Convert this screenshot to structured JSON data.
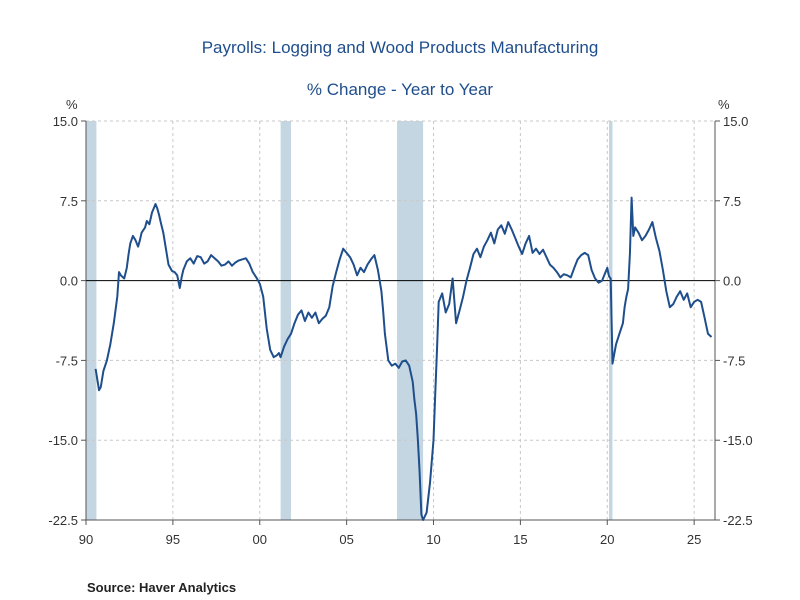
{
  "chart_data": {
    "type": "line",
    "title": "Payrolls: Logging and Wood Products Manufacturing",
    "subtitle": "% Change - Year to Year",
    "ylabel_left": "%",
    "ylabel_right": "%",
    "ylim": [
      -22.5,
      15.0
    ],
    "yticks": [
      15.0,
      7.5,
      0.0,
      -7.5,
      -15.0,
      -22.5
    ],
    "ytick_labels": [
      "15.0",
      "7.5",
      "0.0",
      "-7.5",
      "-15.0",
      "-22.5"
    ],
    "xlim": [
      1990,
      2026.2
    ],
    "xticks": [
      1990,
      1995,
      2000,
      2005,
      2010,
      2015,
      2020,
      2025
    ],
    "xtick_labels": [
      "90",
      "95",
      "00",
      "05",
      "10",
      "15",
      "20",
      "25"
    ],
    "grid": true,
    "recessions": [
      [
        1990.0,
        1990.6
      ],
      [
        2001.2,
        2001.8
      ],
      [
        2007.9,
        2009.4
      ],
      [
        2020.1,
        2020.3
      ]
    ],
    "series": [
      {
        "name": "Logging and Wood Products Manufacturing, % Change Y/Y",
        "color": "#1f4e8c",
        "x": [
          1990.55,
          1990.7,
          1990.75,
          1990.85,
          1991.0,
          1991.2,
          1991.4,
          1991.6,
          1991.8,
          1991.9,
          1992.0,
          1992.2,
          1992.35,
          1992.45,
          1992.55,
          1992.7,
          1992.85,
          1993.0,
          1993.1,
          1993.2,
          1993.4,
          1993.5,
          1993.65,
          1993.8,
          1993.9,
          1994.0,
          1994.1,
          1994.2,
          1994.3,
          1994.45,
          1994.6,
          1994.75,
          1994.95,
          1995.1,
          1995.25,
          1995.4,
          1995.5,
          1995.6,
          1995.8,
          1996.0,
          1996.2,
          1996.4,
          1996.6,
          1996.8,
          1997.0,
          1997.2,
          1997.4,
          1997.6,
          1997.8,
          1998.0,
          1998.2,
          1998.4,
          1998.6,
          1998.8,
          1999.0,
          1999.2,
          1999.4,
          1999.6,
          1999.8,
          2000.0,
          2000.2,
          2000.4,
          2000.6,
          2000.8,
          2001.0,
          2001.1,
          2001.2,
          2001.4,
          2001.6,
          2001.8,
          2002.0,
          2002.2,
          2002.4,
          2002.6,
          2002.8,
          2003.0,
          2003.2,
          2003.4,
          2003.6,
          2003.8,
          2004.0,
          2004.2,
          2004.4,
          2004.6,
          2004.8,
          2005.0,
          2005.2,
          2005.4,
          2005.6,
          2005.8,
          2006.0,
          2006.2,
          2006.4,
          2006.6,
          2006.8,
          2007.0,
          2007.1,
          2007.2,
          2007.4,
          2007.6,
          2007.8,
          2008.0,
          2008.2,
          2008.4,
          2008.6,
          2008.8,
          2008.9,
          2009.0,
          2009.1,
          2009.2,
          2009.3,
          2009.4,
          2009.6,
          2009.8,
          2010.0,
          2010.1,
          2010.2,
          2010.3,
          2010.5,
          2010.7,
          2010.9,
          2011.1,
          2011.3,
          2011.5,
          2011.7,
          2011.9,
          2012.1,
          2012.3,
          2012.5,
          2012.7,
          2012.9,
          2013.1,
          2013.3,
          2013.5,
          2013.7,
          2013.9,
          2014.1,
          2014.3,
          2014.5,
          2014.7,
          2014.9,
          2015.1,
          2015.3,
          2015.5,
          2015.7,
          2015.9,
          2016.1,
          2016.3,
          2016.5,
          2016.7,
          2016.9,
          2017.1,
          2017.3,
          2017.5,
          2017.7,
          2017.9,
          2018.1,
          2018.3,
          2018.5,
          2018.7,
          2018.9,
          2019.1,
          2019.3,
          2019.5,
          2019.7,
          2019.9,
          2020.0,
          2020.1,
          2020.2,
          2020.3,
          2020.5,
          2020.7,
          2020.9,
          2021.0,
          2021.1,
          2021.2,
          2021.3,
          2021.4,
          2021.5,
          2021.6,
          2021.8,
          2022.0,
          2022.2,
          2022.4,
          2022.6,
          2022.8,
          2023.0,
          2023.2,
          2023.4,
          2023.6,
          2023.8,
          2024.0,
          2024.2,
          2024.4,
          2024.6,
          2024.8,
          2025.0,
          2025.2,
          2025.4,
          2025.6,
          2025.8,
          2026.0
        ],
        "y": [
          -8.3,
          -9.8,
          -10.3,
          -10.0,
          -8.5,
          -7.5,
          -6.0,
          -4.0,
          -1.5,
          0.8,
          0.5,
          0.2,
          1.2,
          2.5,
          3.5,
          4.2,
          3.8,
          3.2,
          3.8,
          4.5,
          5.0,
          5.6,
          5.3,
          6.4,
          6.8,
          7.2,
          6.8,
          6.2,
          5.5,
          4.5,
          3.0,
          1.5,
          0.9,
          0.8,
          0.5,
          -0.7,
          0.3,
          1.0,
          1.8,
          2.1,
          1.6,
          2.3,
          2.2,
          1.6,
          1.8,
          2.4,
          2.1,
          1.8,
          1.4,
          1.5,
          1.8,
          1.4,
          1.7,
          1.9,
          2.0,
          2.1,
          1.6,
          0.8,
          0.3,
          -0.3,
          -1.5,
          -4.5,
          -6.5,
          -7.2,
          -7.0,
          -6.8,
          -7.2,
          -6.2,
          -5.5,
          -5.0,
          -4.0,
          -3.2,
          -2.8,
          -3.8,
          -3.0,
          -3.5,
          -3.0,
          -4.0,
          -3.6,
          -3.3,
          -2.5,
          -0.5,
          0.8,
          2.0,
          3.0,
          2.6,
          2.2,
          1.5,
          0.5,
          1.2,
          0.8,
          1.5,
          2.0,
          2.4,
          1.0,
          -1.0,
          -2.8,
          -5.0,
          -7.5,
          -8.0,
          -7.8,
          -8.2,
          -7.6,
          -7.5,
          -8.0,
          -9.5,
          -11.2,
          -12.5,
          -15.0,
          -18.0,
          -22.0,
          -22.5,
          -21.8,
          -19.0,
          -15.0,
          -10.5,
          -6.5,
          -2.0,
          -1.2,
          -3.0,
          -2.2,
          0.2,
          -4.0,
          -2.8,
          -1.5,
          0.0,
          1.2,
          2.5,
          3.0,
          2.2,
          3.2,
          3.8,
          4.5,
          3.5,
          4.8,
          5.2,
          4.4,
          5.5,
          4.8,
          4.0,
          3.2,
          2.5,
          3.5,
          4.2,
          2.6,
          3.0,
          2.5,
          2.9,
          2.2,
          1.5,
          1.2,
          0.8,
          0.3,
          0.6,
          0.5,
          0.3,
          1.2,
          2.0,
          2.4,
          2.6,
          2.4,
          1.0,
          0.2,
          -0.2,
          0.0,
          0.8,
          1.2,
          0.4,
          0.2,
          -7.8,
          -6.0,
          -5.0,
          -4.0,
          -2.5,
          -1.5,
          -0.8,
          2.5,
          7.8,
          4.2,
          5.0,
          4.5,
          3.8,
          4.2,
          4.8,
          5.5,
          4.0,
          2.8,
          1.0,
          -1.0,
          -2.5,
          -2.2,
          -1.5,
          -1.0,
          -1.8,
          -1.2,
          -2.5,
          -2.0,
          -1.8,
          -2.0,
          -3.5,
          -5.0,
          -5.3
        ]
      }
    ]
  },
  "source_text": "Source:  Haver Analytics"
}
